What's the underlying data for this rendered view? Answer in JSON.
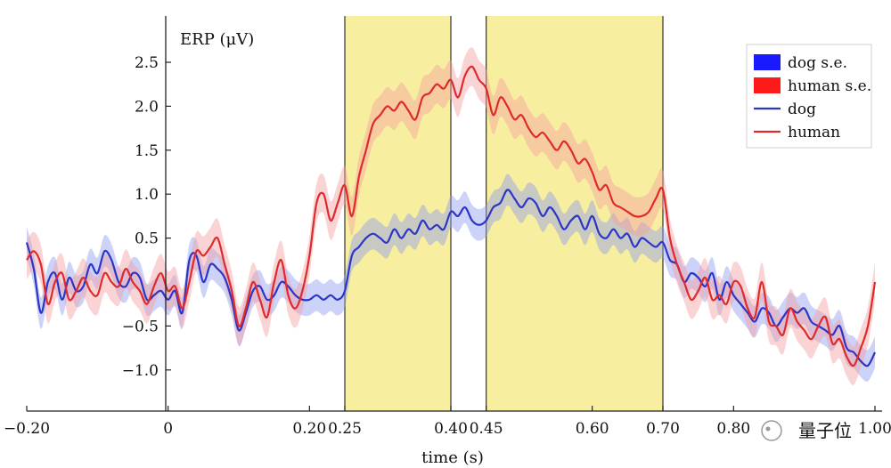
{
  "chart_data": {
    "type": "line",
    "title": "",
    "ylabel": "ERP (μV)",
    "xlabel": "time (s)",
    "xlim": [
      -0.2,
      1.0
    ],
    "ylim": [
      -1.3,
      2.9
    ],
    "xticks": [
      {
        "value": -0.2,
        "label": "−0.20"
      },
      {
        "value": 0,
        "label": "0"
      },
      {
        "value": 0.2,
        "label": "0.20"
      },
      {
        "value": 0.25,
        "label": "0.25"
      },
      {
        "value": 0.4,
        "label": "0.40"
      },
      {
        "value": 0.45,
        "label": "0.45"
      },
      {
        "value": 0.6,
        "label": "0.60"
      },
      {
        "value": 0.7,
        "label": "0.70"
      },
      {
        "value": 0.8,
        "label": "0.80"
      },
      {
        "value": 1.0,
        "label": "1.00"
      }
    ],
    "yticks": [
      {
        "value": 2.5,
        "label": "2.5"
      },
      {
        "value": 2.0,
        "label": "2.0"
      },
      {
        "value": 1.5,
        "label": "1.5"
      },
      {
        "value": 1.0,
        "label": "1.0"
      },
      {
        "value": 0.5,
        "label": "0.5"
      },
      {
        "value": -0.5,
        "label": "−0.5"
      },
      {
        "value": -1.0,
        "label": "−1.0"
      }
    ],
    "highlight_windows": [
      {
        "start": 0.25,
        "end": 0.4,
        "color": "#f7ef9f"
      },
      {
        "start": 0.45,
        "end": 0.7,
        "color": "#f7ef9f"
      }
    ],
    "legend": {
      "position": "top-right",
      "entries": [
        {
          "label": "dog s.e.",
          "kind": "patch",
          "color": "#1a1aff"
        },
        {
          "label": "human s.e.",
          "kind": "patch",
          "color": "#ff1a1a"
        },
        {
          "label": "dog",
          "kind": "line",
          "color": "#2b35c8"
        },
        {
          "label": "human",
          "kind": "line",
          "color": "#e02a2a"
        }
      ]
    },
    "series": [
      {
        "name": "dog",
        "color": "#2b35c8",
        "band_color": "#8f9bf0",
        "se": 0.18,
        "x": [
          -0.2,
          -0.19,
          -0.18,
          -0.17,
          -0.16,
          -0.15,
          -0.14,
          -0.13,
          -0.12,
          -0.11,
          -0.1,
          -0.09,
          -0.08,
          -0.07,
          -0.06,
          -0.05,
          -0.04,
          -0.03,
          -0.02,
          -0.01,
          0.0,
          0.01,
          0.02,
          0.03,
          0.04,
          0.05,
          0.06,
          0.07,
          0.08,
          0.09,
          0.1,
          0.11,
          0.12,
          0.13,
          0.14,
          0.15,
          0.16,
          0.17,
          0.18,
          0.19,
          0.2,
          0.21,
          0.22,
          0.23,
          0.24,
          0.25,
          0.26,
          0.27,
          0.28,
          0.29,
          0.3,
          0.31,
          0.32,
          0.33,
          0.34,
          0.35,
          0.36,
          0.37,
          0.38,
          0.39,
          0.4,
          0.41,
          0.42,
          0.43,
          0.44,
          0.45,
          0.46,
          0.47,
          0.48,
          0.49,
          0.5,
          0.51,
          0.52,
          0.53,
          0.54,
          0.55,
          0.56,
          0.57,
          0.58,
          0.59,
          0.6,
          0.61,
          0.62,
          0.63,
          0.64,
          0.65,
          0.66,
          0.67,
          0.68,
          0.69,
          0.7,
          0.71,
          0.72,
          0.73,
          0.74,
          0.75,
          0.76,
          0.77,
          0.78,
          0.79,
          0.8,
          0.81,
          0.82,
          0.83,
          0.84,
          0.85,
          0.86,
          0.87,
          0.88,
          0.89,
          0.9,
          0.91,
          0.92,
          0.93,
          0.94,
          0.95,
          0.96,
          0.97,
          0.98,
          0.99,
          1.0
        ],
        "values": [
          0.45,
          0.15,
          -0.35,
          0.0,
          0.1,
          -0.2,
          0.05,
          -0.1,
          -0.05,
          0.2,
          0.1,
          0.35,
          0.25,
          0.0,
          -0.05,
          0.1,
          0.05,
          -0.2,
          -0.15,
          -0.1,
          -0.2,
          -0.1,
          -0.35,
          0.25,
          0.3,
          0.0,
          0.2,
          0.15,
          0.05,
          -0.2,
          -0.55,
          -0.35,
          -0.1,
          -0.05,
          -0.2,
          -0.15,
          0.0,
          -0.05,
          -0.15,
          -0.2,
          -0.2,
          -0.15,
          -0.2,
          -0.15,
          -0.2,
          -0.1,
          0.3,
          0.4,
          0.5,
          0.55,
          0.5,
          0.45,
          0.6,
          0.5,
          0.6,
          0.55,
          0.7,
          0.6,
          0.65,
          0.6,
          0.8,
          0.75,
          0.85,
          0.7,
          0.65,
          0.7,
          0.85,
          0.9,
          1.05,
          0.95,
          0.85,
          0.95,
          0.9,
          0.75,
          0.85,
          0.75,
          0.6,
          0.7,
          0.75,
          0.6,
          0.75,
          0.55,
          0.5,
          0.6,
          0.5,
          0.55,
          0.4,
          0.5,
          0.45,
          0.4,
          0.45,
          0.25,
          0.2,
          0.0,
          0.1,
          0.05,
          -0.05,
          0.1,
          -0.2,
          0.0,
          -0.15,
          -0.25,
          -0.35,
          -0.45,
          -0.3,
          -0.35,
          -0.5,
          -0.4,
          -0.3,
          -0.35,
          -0.3,
          -0.45,
          -0.5,
          -0.55,
          -0.6,
          -0.5,
          -0.75,
          -0.8,
          -0.9,
          -0.95,
          -0.8
        ]
      },
      {
        "name": "human",
        "color": "#e02a2a",
        "band_color": "#f3a0a0",
        "se": 0.22,
        "x": [
          -0.2,
          -0.19,
          -0.18,
          -0.17,
          -0.16,
          -0.15,
          -0.14,
          -0.13,
          -0.12,
          -0.11,
          -0.1,
          -0.09,
          -0.08,
          -0.07,
          -0.06,
          -0.05,
          -0.04,
          -0.03,
          -0.02,
          -0.01,
          0.0,
          0.01,
          0.02,
          0.03,
          0.04,
          0.05,
          0.06,
          0.07,
          0.08,
          0.09,
          0.1,
          0.11,
          0.12,
          0.13,
          0.14,
          0.15,
          0.16,
          0.17,
          0.18,
          0.19,
          0.2,
          0.21,
          0.22,
          0.23,
          0.24,
          0.25,
          0.26,
          0.27,
          0.28,
          0.29,
          0.3,
          0.31,
          0.32,
          0.33,
          0.34,
          0.35,
          0.36,
          0.37,
          0.38,
          0.39,
          0.4,
          0.41,
          0.42,
          0.43,
          0.44,
          0.45,
          0.46,
          0.47,
          0.48,
          0.49,
          0.5,
          0.51,
          0.52,
          0.53,
          0.54,
          0.55,
          0.56,
          0.57,
          0.58,
          0.59,
          0.6,
          0.61,
          0.62,
          0.63,
          0.64,
          0.65,
          0.66,
          0.67,
          0.68,
          0.69,
          0.7,
          0.71,
          0.72,
          0.73,
          0.74,
          0.75,
          0.76,
          0.77,
          0.78,
          0.79,
          0.8,
          0.81,
          0.82,
          0.83,
          0.84,
          0.85,
          0.86,
          0.87,
          0.88,
          0.89,
          0.9,
          0.91,
          0.92,
          0.93,
          0.94,
          0.95,
          0.96,
          0.97,
          0.98,
          0.99,
          1.0
        ],
        "values": [
          0.25,
          0.35,
          0.2,
          -0.25,
          0.0,
          0.1,
          -0.2,
          -0.1,
          0.05,
          -0.1,
          -0.15,
          0.1,
          0.0,
          -0.05,
          0.15,
          0.0,
          -0.1,
          -0.25,
          -0.05,
          0.1,
          -0.1,
          -0.05,
          -0.3,
          0.0,
          0.35,
          0.3,
          0.4,
          0.5,
          0.2,
          -0.1,
          -0.5,
          -0.3,
          0.0,
          -0.2,
          -0.4,
          0.0,
          0.25,
          -0.15,
          -0.3,
          -0.1,
          0.3,
          0.9,
          1.0,
          0.7,
          0.9,
          1.1,
          0.75,
          1.2,
          1.5,
          1.8,
          1.9,
          2.0,
          1.95,
          2.05,
          1.95,
          1.85,
          2.1,
          2.15,
          2.25,
          2.2,
          2.3,
          2.1,
          2.35,
          2.45,
          2.3,
          2.2,
          1.9,
          2.1,
          2.0,
          1.85,
          1.9,
          1.75,
          1.65,
          1.7,
          1.6,
          1.5,
          1.6,
          1.5,
          1.35,
          1.4,
          1.25,
          1.05,
          1.1,
          0.9,
          0.85,
          0.8,
          0.75,
          0.75,
          0.8,
          0.95,
          1.05,
          0.5,
          0.2,
          0.0,
          -0.2,
          -0.1,
          0.05,
          -0.2,
          -0.15,
          -0.25,
          0.0,
          -0.05,
          -0.3,
          -0.4,
          0.0,
          -0.45,
          -0.5,
          -0.6,
          -0.3,
          -0.45,
          -0.55,
          -0.65,
          -0.5,
          -0.4,
          -0.7,
          -0.65,
          -0.85,
          -0.95,
          -0.75,
          -0.5,
          0.0
        ]
      }
    ]
  },
  "watermark": {
    "text": "量子位"
  }
}
